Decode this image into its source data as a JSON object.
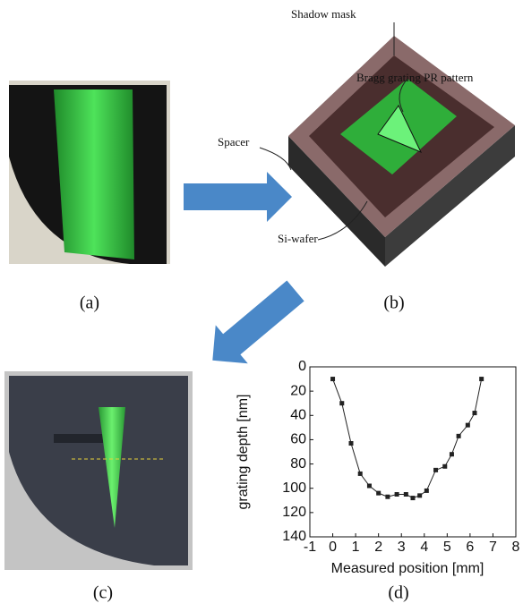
{
  "panel_labels": [
    "(a)",
    "(b)",
    "(c)",
    "(d)"
  ],
  "diagram_labels": {
    "shadow_mask": "Shadow mask",
    "bragg": "Bragg grating PR pattern",
    "spacer": "Spacer",
    "wafer": "Si-wafer"
  },
  "chart_data": {
    "type": "line",
    "x": [
      0,
      0.4,
      0.8,
      1.2,
      1.6,
      2.0,
      2.4,
      2.8,
      3.2,
      3.5,
      3.8,
      4.1,
      4.5,
      4.9,
      5.2,
      5.5,
      5.9,
      6.2,
      6.5
    ],
    "values": [
      10,
      30,
      63,
      88,
      98,
      104,
      107,
      105,
      105,
      108,
      106,
      102,
      85,
      82,
      72,
      57,
      48,
      38,
      10
    ],
    "color": "#222222",
    "x_label": "Measured position [mm]",
    "y_label": "grating depth [nm]",
    "xlim": [
      -1,
      8
    ],
    "xticks": [
      -1,
      0,
      1,
      2,
      3,
      4,
      5,
      6,
      7,
      8
    ],
    "ylim": [
      140,
      0
    ],
    "yticks": [
      0,
      20,
      40,
      60,
      80,
      100,
      120,
      140
    ]
  }
}
